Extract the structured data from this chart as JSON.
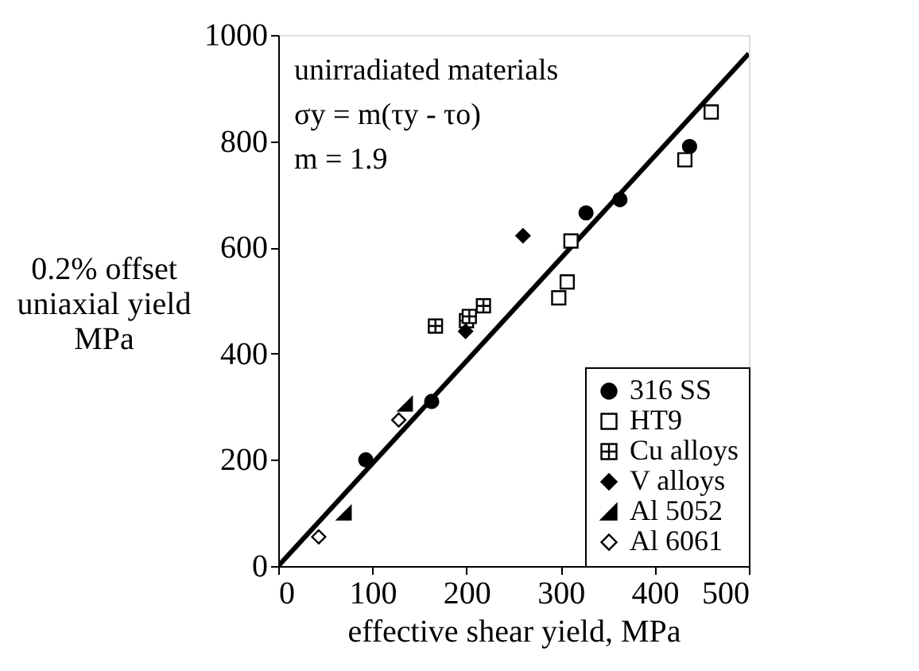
{
  "chart_data": {
    "type": "scatter",
    "xlabel": "effective shear yield, MPa",
    "ylabel": "0.2% offset\nuniaxial yield\nMPa",
    "xlim": [
      0,
      500
    ],
    "ylim": [
      0,
      1000
    ],
    "xticks": [
      0,
      100,
      200,
      300,
      400,
      500
    ],
    "yticks": [
      0,
      200,
      400,
      600,
      800,
      1000
    ],
    "grid": false,
    "legend": "bottom right",
    "annotations": [
      "unirradiated materials",
      "σy = m(τy - τo)",
      "m = 1.9"
    ],
    "series": [
      {
        "name": "316 SS",
        "color": "#000000",
        "marker": "circle",
        "x": [
          93,
          163,
          327,
          363,
          437
        ],
        "values": [
          200,
          310,
          665,
          690,
          790
        ]
      },
      {
        "name": "HT9",
        "color": "#ffffff",
        "marker": "square",
        "x": [
          298,
          307,
          311,
          432,
          460
        ],
        "values": [
          505,
          535,
          612,
          765,
          855
        ]
      },
      {
        "name": "Cu alloys",
        "color": "#ffffff",
        "marker": "cross",
        "x": [
          167,
          200,
          203,
          218
        ],
        "values": [
          452,
          462,
          470,
          490
        ]
      },
      {
        "name": "V alloys",
        "color": "#000000",
        "marker": "diamond",
        "x": [
          199,
          260
        ],
        "values": [
          442,
          622
        ]
      },
      {
        "name": "Al 5052",
        "color": "#000000",
        "marker": "triangle",
        "x": [
          70,
          135
        ],
        "values": [
          100,
          305
        ]
      },
      {
        "name": "Al 6061",
        "color": "#ffffff",
        "marker": "diamond",
        "x": [
          43,
          128
        ],
        "values": [
          55,
          275
        ]
      },
      {
        "type": "line",
        "color": "#000000",
        "line_style": "solid",
        "x": [
          0,
          500
        ],
        "values": [
          0,
          965
        ]
      }
    ]
  }
}
